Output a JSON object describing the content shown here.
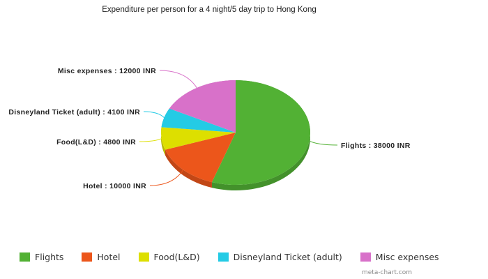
{
  "chart_data": {
    "type": "pie",
    "title": "Expenditure per person for a 4 night/5 day trip to Hong Kong",
    "unit": "INR",
    "categories": [
      "Flights",
      "Hotel",
      "Food(L&D)",
      "Disneyland Ticket (adult)",
      "Misc expenses"
    ],
    "values": [
      38000,
      10000,
      4800,
      4100,
      12000
    ],
    "colors": [
      "#52b134",
      "#ec561b",
      "#dddf00",
      "#24cbe5",
      "#d871c9"
    ],
    "data_labels": [
      "Flights : 38000 INR",
      "Hotel : 10000 INR",
      "Food(L&D) : 4800 INR",
      "Disneyland Ticket (adult) : 4100 INR",
      "Misc expenses : 12000 INR"
    ],
    "legend_position": "bottom",
    "style": "3d"
  },
  "legend": [
    {
      "label": "Flights",
      "color": "#52b134"
    },
    {
      "label": "Hotel",
      "color": "#ec561b"
    },
    {
      "label": "Food(L&D)",
      "color": "#dddf00"
    },
    {
      "label": "Disneyland Ticket (adult)",
      "color": "#24cbe5"
    },
    {
      "label": "Misc expenses",
      "color": "#d871c9"
    }
  ],
  "credit": "meta-chart.com"
}
